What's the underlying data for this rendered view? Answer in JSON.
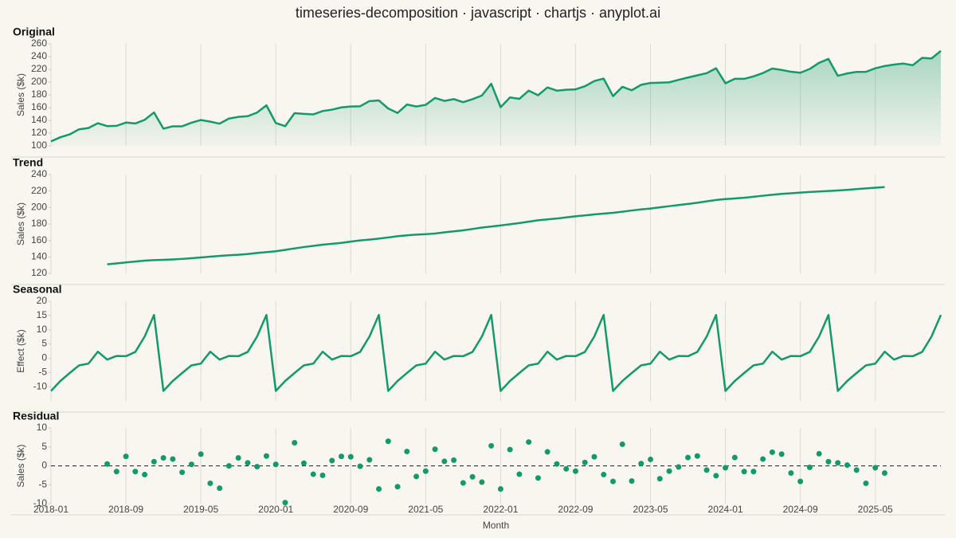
{
  "title": "timeseries-decomposition · javascript · chartjs · anyplot.ai",
  "chart_data": [
    {
      "type": "area",
      "title": "Original",
      "y_label": "Sales ($k)",
      "color": "#139a6c",
      "grid": "x",
      "ylim": [
        100,
        260
      ],
      "yticks": [
        100,
        120,
        140,
        160,
        180,
        200,
        220,
        240,
        260
      ],
      "values": [
        107,
        113.5,
        118,
        126,
        128,
        135.5,
        131.0,
        131.4,
        136.5,
        135.1,
        140.8,
        152.4,
        127.0,
        130.7,
        130.7,
        136.3,
        140.5,
        138.0,
        134.8,
        142.8,
        145.4,
        146.5,
        152.2,
        163.6,
        135.8,
        130.8,
        151.2,
        150.2,
        149.3,
        154.6,
        156.8,
        160.3,
        161.7,
        162.1,
        170.2,
        171.3,
        158.6,
        151.6,
        164.8,
        161.7,
        164.3,
        175.1,
        170.5,
        173.3,
        168.5,
        173.2,
        178.9,
        197.4,
        160.6,
        175.9,
        173.7,
        186.6,
        179.4,
        191.6,
        186.6,
        188.0,
        188.6,
        193.5,
        201.6,
        205.5,
        177.9,
        192.6,
        187.2,
        195.8,
        198.6,
        199.1,
        199.7,
        203.5,
        207.2,
        210.6,
        214.0,
        221.7,
        198.2,
        205.2,
        205.1,
        209.0,
        214.2,
        221.3,
        219.1,
        216.2,
        214.7,
        220.6,
        230.2,
        236.3,
        209.9,
        213.6,
        216.0,
        216.1,
        221.6,
        225.2,
        227.5,
        229.0,
        226.5,
        238.0,
        237.0,
        249.0
      ]
    },
    {
      "type": "line",
      "title": "Trend",
      "y_label": "Sales ($k)",
      "color": "#139a6c",
      "grid": "x",
      "ylim": [
        120,
        240
      ],
      "yticks": [
        120,
        140,
        160,
        180,
        200,
        220,
        240
      ],
      "values": [
        null,
        null,
        null,
        null,
        null,
        null,
        131.0,
        132.1,
        133.3,
        134.4,
        135.5,
        136.1,
        136.4,
        136.9,
        137.6,
        138.4,
        139.3,
        140.3,
        141.2,
        142.0,
        142.6,
        143.5,
        144.8,
        145.8,
        146.9,
        148.5,
        150.3,
        152.0,
        153.4,
        154.8,
        155.9,
        157.0,
        158.6,
        160.0,
        161.0,
        162.2,
        163.6,
        165.1,
        166.2,
        167.0,
        167.6,
        168.4,
        169.8,
        171.0,
        172.3,
        173.9,
        175.6,
        176.9,
        178.2,
        179.6,
        181.1,
        182.8,
        184.5,
        185.6,
        186.6,
        188.0,
        189.3,
        190.4,
        191.6,
        192.6,
        193.5,
        194.9,
        196.4,
        197.7,
        198.8,
        200.2,
        201.6,
        203.0,
        204.3,
        205.8,
        207.5,
        209.1,
        210.2,
        211.0,
        211.8,
        213.0,
        214.3,
        215.4,
        216.5,
        217.3,
        218.1,
        218.8,
        219.4,
        220.0,
        220.6,
        221.4,
        222.3,
        223.2,
        224.0,
        224.8,
        null,
        null,
        null,
        null,
        null,
        null
      ]
    },
    {
      "type": "line",
      "title": "Seasonal",
      "y_label": "Effect ($k)",
      "color": "#139a6c",
      "grid": "x",
      "ylim": [
        -15,
        20
      ],
      "yticks": [
        -10,
        -5,
        0,
        5,
        10,
        15,
        20
      ],
      "values": [
        -11.5,
        -8,
        -5.2,
        -2.5,
        -1.9,
        2.3,
        -0.5,
        0.8,
        0.7,
        2.2,
        7.6,
        15.2,
        -11.5,
        -8,
        -5.2,
        -2.5,
        -1.9,
        2.3,
        -0.5,
        0.8,
        0.7,
        2.2,
        7.6,
        15.2,
        -11.5,
        -8,
        -5.2,
        -2.5,
        -1.9,
        2.3,
        -0.5,
        0.8,
        0.7,
        2.2,
        7.6,
        15.2,
        -11.5,
        -8,
        -5.2,
        -2.5,
        -1.9,
        2.3,
        -0.5,
        0.8,
        0.7,
        2.2,
        7.6,
        15.2,
        -11.5,
        -8,
        -5.2,
        -2.5,
        -1.9,
        2.3,
        -0.5,
        0.8,
        0.7,
        2.2,
        7.6,
        15.2,
        -11.5,
        -8,
        -5.2,
        -2.5,
        -1.9,
        2.3,
        -0.5,
        0.8,
        0.7,
        2.2,
        7.6,
        15.2,
        -11.5,
        -8,
        -5.2,
        -2.5,
        -1.9,
        2.3,
        -0.5,
        0.8,
        0.7,
        2.2,
        7.6,
        15.2,
        -11.5,
        -8,
        -5.2,
        -2.5,
        -1.9,
        2.3,
        -0.5,
        0.8,
        0.7,
        2.2,
        7.6,
        15.2
      ]
    },
    {
      "type": "scatter",
      "title": "Residual",
      "y_label": "Sales ($k)",
      "x_label": "Month",
      "color": "#139a6c",
      "grid": "x",
      "zero_line": true,
      "ylim": [
        -10,
        10
      ],
      "yticks": [
        -10,
        -5,
        0,
        5,
        10
      ],
      "categories": [
        "2018-01",
        null,
        null,
        null,
        null,
        null,
        null,
        null,
        "2018-09",
        null,
        null,
        null,
        null,
        null,
        null,
        null,
        "2019-05",
        null,
        null,
        null,
        null,
        null,
        null,
        null,
        "2020-01",
        null,
        null,
        null,
        null,
        null,
        null,
        null,
        "2020-09",
        null,
        null,
        null,
        null,
        null,
        null,
        null,
        "2021-05",
        null,
        null,
        null,
        null,
        null,
        null,
        null,
        "2022-01",
        null,
        null,
        null,
        null,
        null,
        null,
        null,
        "2022-09",
        null,
        null,
        null,
        null,
        null,
        null,
        null,
        "2023-05",
        null,
        null,
        null,
        null,
        null,
        null,
        null,
        "2024-01",
        null,
        null,
        null,
        null,
        null,
        null,
        null,
        "2024-09",
        null,
        null,
        null,
        null,
        null,
        null,
        null,
        "2025-05",
        null,
        null,
        null,
        null,
        null,
        null,
        null
      ],
      "values": [
        null,
        null,
        null,
        null,
        null,
        null,
        0.5,
        -1.5,
        2.5,
        -1.5,
        -2.3,
        1.1,
        2.1,
        1.8,
        -1.7,
        0.4,
        3.1,
        -4.6,
        -5.9,
        0,
        2.1,
        0.8,
        -0.2,
        2.6,
        0.4,
        -9.7,
        6.1,
        0.7,
        -2.2,
        -2.5,
        1.4,
        2.5,
        2.4,
        -0.1,
        1.6,
        -6.1,
        6.5,
        -5.5,
        3.8,
        -2.8,
        -1.4,
        4.4,
        1.2,
        1.5,
        -4.5,
        -2.9,
        -4.3,
        5.3,
        -6.1,
        4.3,
        -2.2,
        6.3,
        -3.2,
        3.7,
        0.5,
        -0.8,
        -1.4,
        0.9,
        2.4,
        -2.3,
        -4.1,
        5.7,
        -4.0,
        0.6,
        1.7,
        -3.4,
        -1.4,
        -0.3,
        2.2,
        2.6,
        -1.1,
        -2.6,
        -0.5,
        2.2,
        -1.5,
        -1.5,
        1.8,
        3.6,
        3.1,
        -1.9,
        -4.1,
        -0.4,
        3.2,
        1.1,
        0.8,
        0.2,
        -1.1,
        -4.6,
        -0.5,
        -1.9,
        null,
        null,
        null,
        null,
        null,
        null
      ]
    }
  ]
}
